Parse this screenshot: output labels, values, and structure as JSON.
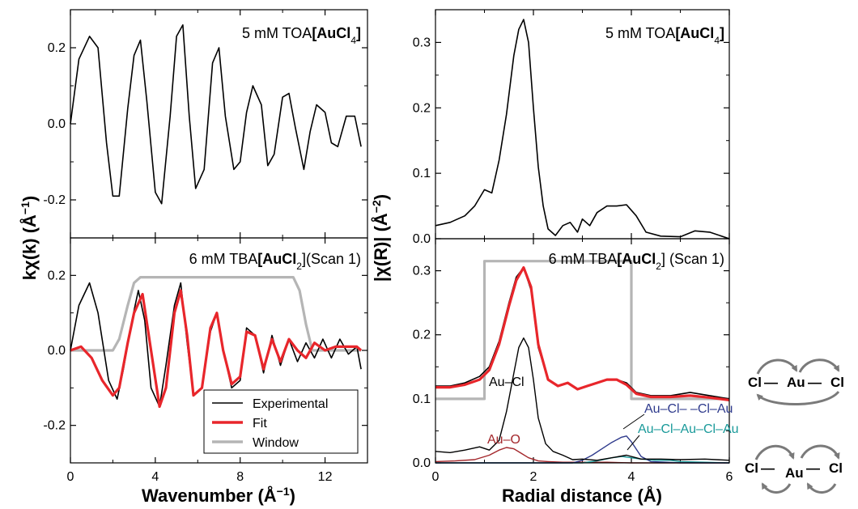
{
  "left": {
    "xlabel_text": "Wavenumber (Å",
    "xlabel_sup": "−1",
    "xlabel_close": ")",
    "ylabel_text": "kχ(k) (Å",
    "ylabel_sup": "−1",
    "ylabel_close": ")",
    "xticks": [
      "0",
      "4",
      "8",
      "12"
    ],
    "top_yticks": [
      "0.2",
      "0.0",
      "-0.2"
    ],
    "bottom_yticks": [
      "0.2",
      "0.0",
      "-0.2"
    ],
    "top_title_pre": "5 mM TOA",
    "top_title_bold": "[AuCl",
    "top_title_sub": "4",
    "top_title_post": "]",
    "bottom_title_pre": "6 mM TBA",
    "bottom_title_bold": "[AuCl",
    "bottom_title_sub": "2",
    "bottom_title_post": "](Scan 1)",
    "legend": [
      "Experimental",
      "Fit",
      "Window"
    ]
  },
  "right": {
    "xlabel": "Radial distance (Å)",
    "ylabel_text": "|χ(R)| (Å",
    "ylabel_sup": "−2",
    "ylabel_close": ")",
    "xticks": [
      "0",
      "2",
      "4",
      "6"
    ],
    "top_yticks": [
      "0.3",
      "0.2",
      "0.1",
      "0.0"
    ],
    "bottom_yticks": [
      "0.3",
      "0.2",
      "0.1",
      "0.0"
    ],
    "top_title_pre": "5 mM TOA",
    "top_title_bold": "[AuCl",
    "top_title_sub": "4",
    "top_title_post": "]",
    "bottom_title_pre": "6 mM TBA",
    "bottom_title_bold": "[AuCl",
    "bottom_title_sub": "2",
    "bottom_title_post": "] (Scan 1)",
    "annotations": [
      "Au–Cl",
      "Au–O",
      "Au–Cl– –Cl–Au",
      "Au–Cl–Au–Cl–Au"
    ]
  },
  "schematic": {
    "cl": "Cl",
    "au": "Au",
    "dash": "—"
  },
  "colors": {
    "experimental": "#000000",
    "fit": "#e8262b",
    "window": "#b5b5b5",
    "au_o": "#a3262a",
    "au_cl_cl_au": "#2e3a8c",
    "au_cl_au_cl_au": "#1a9a9a",
    "arrows": "#7a7a7a"
  },
  "chart_data": [
    {
      "panel": "left-top",
      "type": "line",
      "title": "5 mM TOA[AuCl4]",
      "xlabel": "Wavenumber (Å−1)",
      "ylabel": "kχ(k) (Å−1)",
      "xlim": [
        0,
        14
      ],
      "ylim": [
        -0.3,
        0.3
      ],
      "series": [
        {
          "name": "Experimental",
          "x": [
            0,
            0.4,
            0.9,
            1.3,
            1.7,
            2.0,
            2.3,
            2.7,
            3.0,
            3.3,
            3.6,
            4.0,
            4.3,
            4.7,
            5.0,
            5.3,
            5.6,
            5.9,
            6.3,
            6.7,
            7.0,
            7.3,
            7.7,
            8.0,
            8.3,
            8.6,
            9.0,
            9.3,
            9.6,
            10.0,
            10.3,
            10.6,
            11.0,
            11.3,
            11.6,
            12.0,
            12.3,
            12.6,
            13.0,
            13.4,
            13.7
          ],
          "y": [
            0.0,
            0.17,
            0.23,
            0.2,
            -0.05,
            -0.19,
            -0.19,
            0.04,
            0.18,
            0.22,
            0.06,
            -0.18,
            -0.21,
            0.02,
            0.23,
            0.26,
            0.02,
            -0.17,
            -0.12,
            0.16,
            0.2,
            0.02,
            -0.12,
            -0.1,
            0.03,
            0.1,
            0.05,
            -0.11,
            -0.08,
            0.07,
            0.08,
            -0.01,
            -0.12,
            -0.02,
            0.05,
            0.03,
            -0.05,
            -0.06,
            0.02,
            0.02,
            -0.06
          ]
        }
      ]
    },
    {
      "panel": "left-bottom",
      "type": "line",
      "title": "6 mM TBA[AuCl2](Scan 1)",
      "xlabel": "Wavenumber (Å−1)",
      "ylabel": "kχ(k) (Å−1)",
      "xlim": [
        0,
        14
      ],
      "ylim": [
        -0.3,
        0.3
      ],
      "series": [
        {
          "name": "Experimental",
          "x": [
            0,
            0.4,
            0.9,
            1.3,
            1.8,
            2.2,
            2.5,
            2.9,
            3.2,
            3.5,
            3.8,
            4.2,
            4.5,
            4.9,
            5.2,
            5.5,
            5.8,
            6.2,
            6.6,
            6.9,
            7.2,
            7.6,
            8.0,
            8.3,
            8.7,
            9.1,
            9.5,
            9.9,
            10.3,
            10.7,
            11.1,
            11.5,
            11.9,
            12.3,
            12.7,
            13.1,
            13.5,
            13.7
          ],
          "y": [
            0.0,
            0.12,
            0.18,
            0.1,
            -0.08,
            -0.13,
            -0.05,
            0.08,
            0.16,
            0.08,
            -0.1,
            -0.15,
            -0.04,
            0.12,
            0.18,
            0.02,
            -0.12,
            -0.1,
            0.05,
            0.1,
            0.0,
            -0.1,
            -0.08,
            0.06,
            0.04,
            -0.06,
            0.04,
            -0.04,
            0.03,
            -0.03,
            0.02,
            -0.02,
            0.03,
            -0.02,
            0.03,
            -0.01,
            0.01,
            -0.05
          ]
        },
        {
          "name": "Fit",
          "x": [
            0,
            0.5,
            1.0,
            1.5,
            2.0,
            2.3,
            2.7,
            3.0,
            3.4,
            3.8,
            4.2,
            4.5,
            4.9,
            5.2,
            5.5,
            5.8,
            6.2,
            6.6,
            6.9,
            7.2,
            7.6,
            8.0,
            8.3,
            8.7,
            9.1,
            9.5,
            9.9,
            10.3,
            10.7,
            11.1,
            11.5,
            12.0,
            12.5,
            13.0,
            13.5,
            13.7
          ],
          "y": [
            0.0,
            0.01,
            -0.02,
            -0.08,
            -0.12,
            -0.1,
            0.02,
            0.1,
            0.15,
            0.0,
            -0.15,
            -0.1,
            0.1,
            0.16,
            0.04,
            -0.12,
            -0.1,
            0.06,
            0.1,
            0.0,
            -0.09,
            -0.07,
            0.05,
            0.04,
            -0.05,
            0.03,
            -0.03,
            0.03,
            0.0,
            -0.02,
            0.02,
            0.0,
            0.01,
            0.01,
            0.01,
            0.0
          ]
        },
        {
          "name": "Window",
          "x": [
            0,
            2.0,
            2.3,
            2.7,
            3.0,
            3.3,
            10.5,
            10.8,
            11.1,
            11.4,
            13.7
          ],
          "y": [
            0.0,
            0.0,
            0.03,
            0.12,
            0.18,
            0.195,
            0.195,
            0.16,
            0.07,
            0.0,
            0.0
          ]
        }
      ]
    },
    {
      "panel": "right-top",
      "type": "line",
      "title": "5 mM TOA[AuCl4]",
      "xlabel": "Radial distance (Å)",
      "ylabel": "|χ(R)| (Å−2)",
      "xlim": [
        0,
        6
      ],
      "ylim": [
        0,
        0.35
      ],
      "series": [
        {
          "name": "Experimental",
          "x": [
            0,
            0.3,
            0.6,
            0.8,
            1.0,
            1.15,
            1.3,
            1.45,
            1.6,
            1.7,
            1.8,
            1.9,
            2.0,
            2.1,
            2.2,
            2.3,
            2.45,
            2.6,
            2.75,
            2.9,
            3.0,
            3.15,
            3.3,
            3.5,
            3.7,
            3.9,
            4.1,
            4.3,
            4.6,
            5.0,
            5.3,
            5.6,
            6.0
          ],
          "y": [
            0.02,
            0.025,
            0.035,
            0.05,
            0.075,
            0.07,
            0.12,
            0.19,
            0.28,
            0.32,
            0.335,
            0.3,
            0.2,
            0.11,
            0.05,
            0.015,
            0.005,
            0.02,
            0.025,
            0.01,
            0.03,
            0.02,
            0.04,
            0.05,
            0.05,
            0.052,
            0.035,
            0.01,
            0.004,
            0.003,
            0.012,
            0.01,
            0.0
          ]
        }
      ]
    },
    {
      "panel": "right-bottom",
      "type": "line",
      "title": "6 mM TBA[AuCl2] (Scan 1)",
      "xlabel": "Radial distance (Å)",
      "ylabel": "|χ(R)| (Å−2)",
      "xlim": [
        0,
        6
      ],
      "ylim": [
        0,
        0.35
      ],
      "series": [
        {
          "name": "Experimental",
          "x": [
            0,
            0.3,
            0.6,
            0.9,
            1.1,
            1.3,
            1.5,
            1.65,
            1.8,
            1.95,
            2.1,
            2.3,
            2.5,
            2.7,
            2.9,
            3.1,
            3.3,
            3.5,
            3.7,
            3.9,
            4.1,
            4.4,
            4.8,
            5.2,
            5.6,
            6.0
          ],
          "y": [
            0.12,
            0.12,
            0.125,
            0.135,
            0.15,
            0.19,
            0.25,
            0.29,
            0.305,
            0.27,
            0.18,
            0.13,
            0.12,
            0.125,
            0.115,
            0.12,
            0.125,
            0.13,
            0.13,
            0.125,
            0.11,
            0.105,
            0.105,
            0.11,
            0.105,
            0.1
          ]
        },
        {
          "name": "Fit",
          "x": [
            0,
            0.3,
            0.6,
            0.9,
            1.1,
            1.3,
            1.5,
            1.65,
            1.8,
            1.95,
            2.1,
            2.3,
            2.5,
            2.7,
            2.9,
            3.1,
            3.3,
            3.5,
            3.7,
            3.9,
            4.1,
            4.4,
            4.8,
            5.2,
            5.6,
            6.0
          ],
          "y": [
            0.118,
            0.118,
            0.122,
            0.13,
            0.145,
            0.185,
            0.245,
            0.285,
            0.305,
            0.275,
            0.185,
            0.13,
            0.12,
            0.125,
            0.115,
            0.12,
            0.125,
            0.13,
            0.13,
            0.122,
            0.108,
            0.103,
            0.103,
            0.105,
            0.102,
            0.098
          ]
        },
        {
          "name": "Window",
          "x": [
            0,
            1.0,
            1.0,
            4.0,
            4.0,
            6.0
          ],
          "y": [
            0.1,
            0.1,
            0.315,
            0.315,
            0.1,
            0.1
          ]
        },
        {
          "name": "Au–Cl",
          "x": [
            0,
            0.3,
            0.6,
            0.9,
            1.1,
            1.3,
            1.45,
            1.6,
            1.7,
            1.8,
            1.9,
            2.0,
            2.1,
            2.25,
            2.4,
            2.6,
            2.8,
            3.0,
            3.3,
            3.6,
            3.9,
            4.2,
            4.6,
            5.0,
            5.5,
            6.0
          ],
          "y": [
            0.018,
            0.016,
            0.02,
            0.025,
            0.02,
            0.035,
            0.08,
            0.14,
            0.18,
            0.195,
            0.18,
            0.13,
            0.07,
            0.03,
            0.018,
            0.012,
            0.005,
            0.006,
            0.004,
            0.008,
            0.012,
            0.006,
            0.006,
            0.005,
            0.006,
            0.004
          ]
        },
        {
          "name": "Au–O",
          "x": [
            0,
            0.4,
            0.8,
            1.1,
            1.3,
            1.45,
            1.6,
            1.75,
            1.9,
            2.1,
            2.3,
            2.6,
            3.0,
            3.5,
            4.0,
            5.0,
            6.0
          ],
          "y": [
            0.002,
            0.003,
            0.005,
            0.012,
            0.02,
            0.024,
            0.022,
            0.015,
            0.008,
            0.003,
            0.002,
            0.001,
            0.001,
            0.001,
            0.0,
            0.0,
            0.0
          ]
        },
        {
          "name": "Au–Cl– –Cl–Au",
          "x": [
            0,
            2.8,
            3.0,
            3.2,
            3.4,
            3.6,
            3.8,
            3.9,
            4.0,
            4.2,
            4.4,
            4.7,
            5.0,
            6.0
          ],
          "y": [
            0.0,
            0.0,
            0.004,
            0.012,
            0.022,
            0.032,
            0.04,
            0.042,
            0.033,
            0.01,
            0.002,
            0.001,
            0.0,
            0.0
          ]
        },
        {
          "name": "Au–Cl–Au–Cl–Au",
          "x": [
            0,
            3.0,
            3.3,
            3.6,
            3.8,
            4.0,
            4.2,
            4.5,
            4.8,
            5.0,
            6.0
          ],
          "y": [
            0.0,
            0.0,
            0.003,
            0.008,
            0.01,
            0.008,
            0.006,
            0.004,
            0.004,
            0.002,
            0.0
          ]
        }
      ]
    }
  ]
}
